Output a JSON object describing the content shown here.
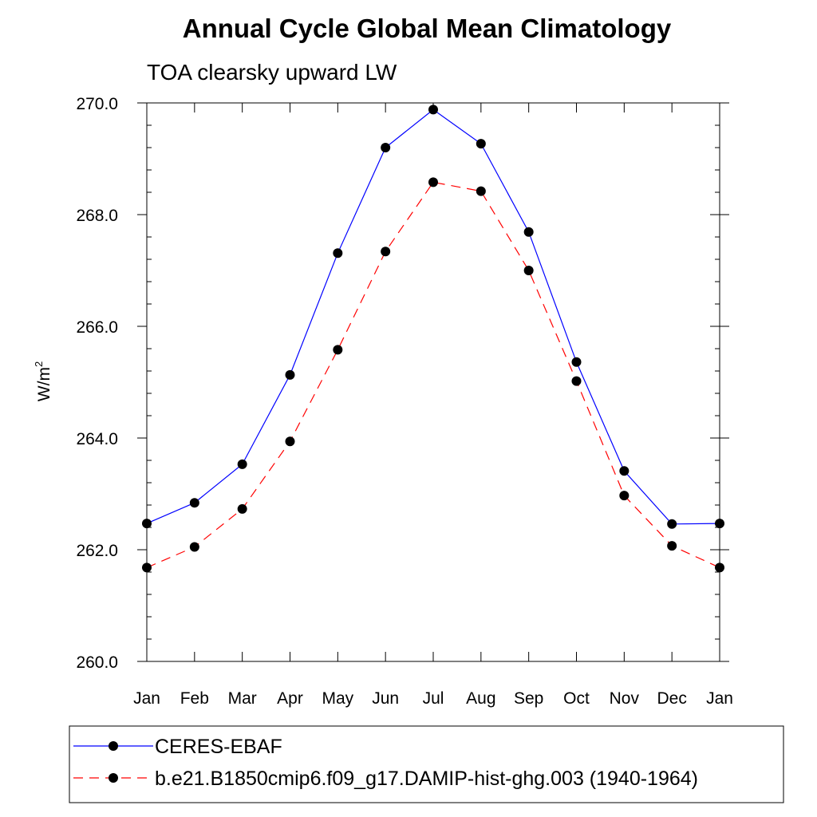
{
  "chart_data": {
    "type": "line",
    "title": "Annual Cycle Global Mean Climatology",
    "subtitle": "TOA clearsky upward LW",
    "ylabel": "W/m",
    "ylabel_superscript": "2",
    "xlabel": "",
    "categories": [
      "Jan",
      "Feb",
      "Mar",
      "Apr",
      "May",
      "Jun",
      "Jul",
      "Aug",
      "Sep",
      "Oct",
      "Nov",
      "Dec",
      "Jan"
    ],
    "ylim": [
      260.0,
      270.0
    ],
    "yticks": [
      "260.0",
      "262.0",
      "264.0",
      "266.0",
      "268.0",
      "270.0"
    ],
    "grid": false,
    "legend_position": "bottom",
    "series": [
      {
        "name": "CERES-EBAF",
        "color": "#0000ff",
        "line_style": "solid",
        "marker": "filled-circle",
        "values": [
          262.47,
          262.84,
          263.53,
          265.13,
          267.31,
          269.2,
          269.88,
          269.27,
          267.69,
          265.36,
          263.41,
          262.46,
          262.47
        ]
      },
      {
        "name": "b.e21.B1850cmip6.f09_g17.DAMIP-hist-ghg.003 (1940-1964)",
        "color": "#ff0000",
        "line_style": "dashed",
        "marker": "filled-circle",
        "values": [
          261.68,
          262.05,
          262.73,
          263.94,
          265.58,
          267.34,
          268.58,
          268.42,
          267.0,
          265.02,
          262.97,
          262.07,
          261.68
        ]
      }
    ]
  }
}
